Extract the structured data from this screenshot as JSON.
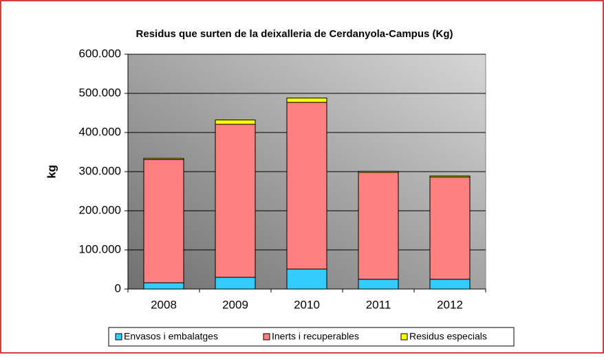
{
  "chart_data": {
    "type": "stacked-bar",
    "title": "Residus que surten de la deixalleria de Cerdanyola-Campus (Kg)",
    "y_label": "kg",
    "categories": [
      "2008",
      "2009",
      "2010",
      "2011",
      "2012"
    ],
    "series": [
      {
        "name": "Envasos i embalatges",
        "color": "#33ccff",
        "values": [
          16000,
          30000,
          51000,
          25000,
          25000
        ]
      },
      {
        "name": "Inerts i recuperables",
        "color": "#ff8080",
        "values": [
          315000,
          391000,
          426000,
          273000,
          261000
        ]
      },
      {
        "name": "Residus especials",
        "color": "#ffff00",
        "values": [
          3000,
          11000,
          11000,
          3000,
          3000
        ]
      }
    ],
    "ylim": [
      0,
      600000
    ],
    "yticks": [
      0,
      {
        "value": 100000,
        "label": "100.000"
      },
      {
        "value": 200000,
        "label": "200.000"
      },
      {
        "value": 300000,
        "label": "300.000"
      },
      {
        "value": 400000,
        "label": "400.000"
      },
      {
        "value": 500000,
        "label": "500.000"
      },
      {
        "value": 600000,
        "label": "600.000"
      }
    ],
    "grid": true
  }
}
